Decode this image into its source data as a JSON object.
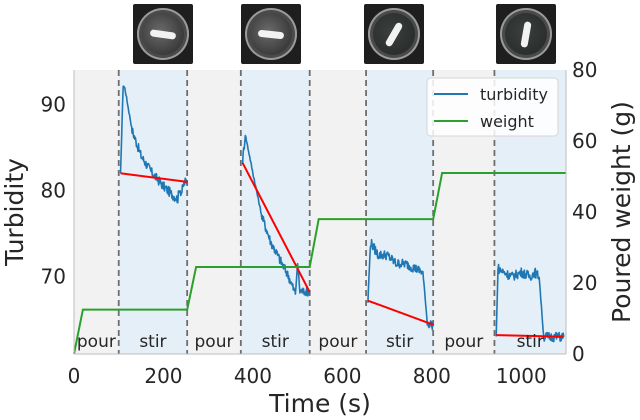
{
  "chart_data": {
    "type": "line",
    "xlabel": "Time (s)",
    "ylabel": "Turbidity",
    "y2label": "Poured weight (g)",
    "xlim": [
      0,
      1100
    ],
    "ylim": [
      61,
      94
    ],
    "y2lim": [
      0,
      80
    ],
    "xticks": [
      0,
      200,
      400,
      600,
      800,
      1000
    ],
    "yticks": [
      70,
      80,
      90
    ],
    "y2ticks": [
      0,
      20,
      40,
      60,
      80
    ],
    "legend_position": "top-right",
    "phase_boundaries": [
      100,
      253,
      373,
      527,
      653,
      803,
      940,
      1100
    ],
    "phases": [
      {
        "label": "pour",
        "start": 0,
        "end": 100,
        "kind": "pour"
      },
      {
        "label": "stir",
        "start": 100,
        "end": 253,
        "kind": "stir"
      },
      {
        "label": "pour",
        "start": 253,
        "end": 373,
        "kind": "pour"
      },
      {
        "label": "stir",
        "start": 373,
        "end": 527,
        "kind": "stir"
      },
      {
        "label": "pour",
        "start": 527,
        "end": 653,
        "kind": "pour"
      },
      {
        "label": "stir",
        "start": 653,
        "end": 803,
        "kind": "stir"
      },
      {
        "label": "pour",
        "start": 803,
        "end": 940,
        "kind": "pour"
      },
      {
        "label": "stir",
        "start": 940,
        "end": 1100,
        "kind": "stir"
      }
    ],
    "series": [
      {
        "name": "turbidity",
        "axis": "left",
        "color": "#1f77b4",
        "segments": [
          {
            "x": [
              104,
              110,
              115,
              130,
              150,
              175,
              200,
              220,
              232,
              236,
              240,
              246,
              250,
              253
            ],
            "y": [
              81.9,
              92.5,
              91.5,
              87.0,
              84.0,
              82.0,
              80.5,
              79.5,
              79.0,
              80.3,
              79.7,
              80.8,
              81.1,
              81.1
            ]
          },
          {
            "x": [
              377,
              383,
              400,
              420,
              440,
              460,
              480,
              495,
              500,
              505,
              525,
              527
            ],
            "y": [
              83.5,
              86.5,
              82.0,
              77.0,
              74.0,
              72.0,
              70.0,
              68.0,
              71.5,
              68.3,
              68.3,
              68.4
            ]
          },
          {
            "x": [
              657,
              663,
              680,
              700,
              720,
              740,
              760,
              780,
              790,
              795,
              800,
              803
            ],
            "y": [
              67.0,
              74.0,
              72.5,
              72.5,
              71.5,
              71.5,
              71.0,
              70.5,
              64.6,
              64.5,
              64.4,
              64.3
            ]
          },
          {
            "x": [
              944,
              948,
              960,
              980,
              1000,
              1020,
              1030,
              1040,
              1050,
              1080,
              1095
            ],
            "y": [
              63.0,
              71.0,
              70.5,
              70.0,
              70.5,
              70.0,
              70.5,
              70.0,
              63.0,
              63.0,
              63.0
            ]
          }
        ]
      },
      {
        "name": "weight",
        "axis": "right",
        "color": "#2ca02c",
        "x": [
          0,
          20,
          253,
          273,
          527,
          547,
          803,
          823,
          1100
        ],
        "y": [
          0,
          12.5,
          12.5,
          24.5,
          24.5,
          38,
          38,
          51,
          51
        ]
      }
    ],
    "fit_lines": [
      {
        "x": [
          104,
          253
        ],
        "y": [
          82.0,
          81.0
        ]
      },
      {
        "x": [
          377,
          527
        ],
        "y": [
          83.2,
          68.2
        ]
      },
      {
        "x": [
          657,
          803
        ],
        "y": [
          67.2,
          64.4
        ]
      },
      {
        "x": [
          944,
          1095
        ],
        "y": [
          63.2,
          63.0
        ]
      }
    ],
    "fit_color": "#ff0000"
  },
  "thumbnails": [
    {
      "name": "thumbnail-after-pour-1",
      "time": 200,
      "state": "cloudy",
      "stir_bar_angle": 8
    },
    {
      "name": "thumbnail-after-pour-2",
      "time": 440,
      "state": "cloudy",
      "stir_bar_angle": 6
    },
    {
      "name": "thumbnail-after-pour-3",
      "time": 715,
      "state": "clear",
      "stir_bar_angle": -60
    },
    {
      "name": "thumbnail-after-pour-4",
      "time": 1010,
      "state": "clear",
      "stir_bar_angle": -80
    }
  ]
}
